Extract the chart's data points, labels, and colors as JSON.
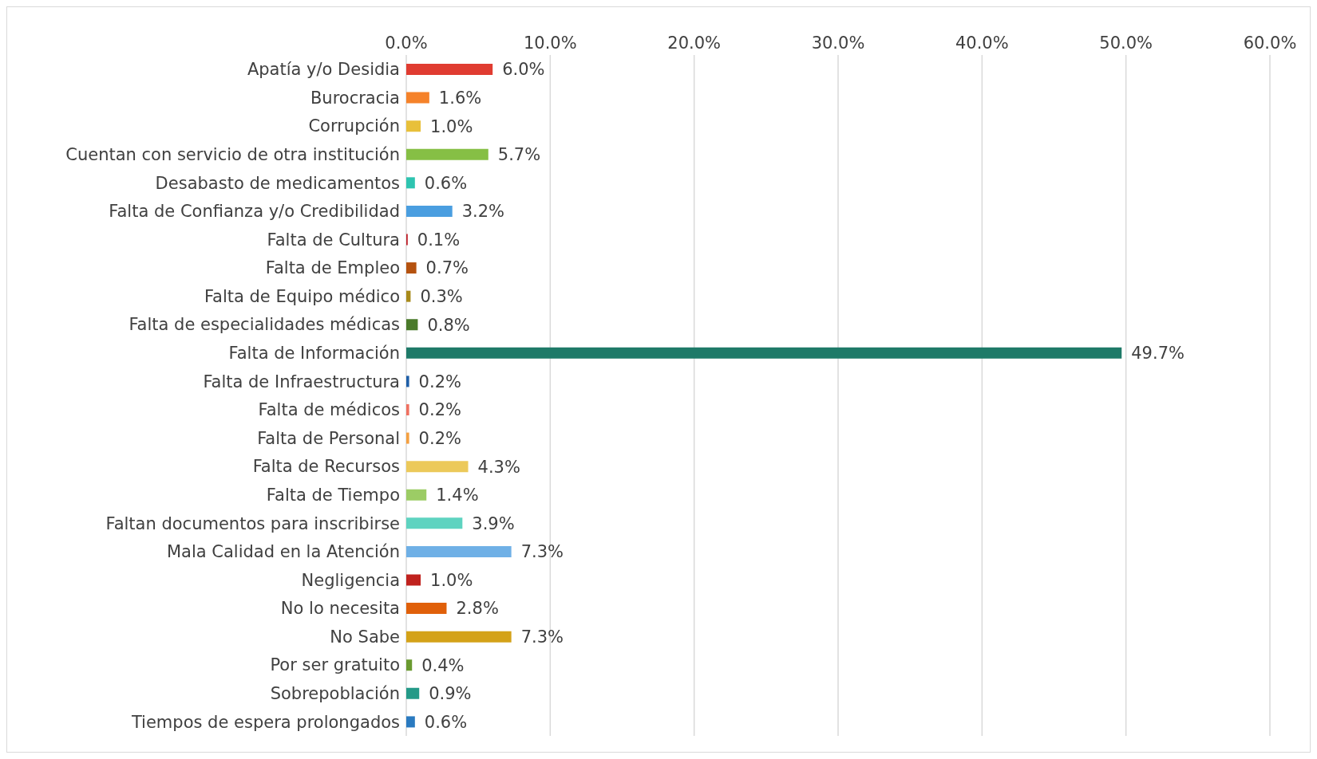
{
  "chart_data": {
    "type": "bar",
    "orientation": "horizontal",
    "categories": [
      "Apatía y/o Desidia",
      "Burocracia",
      "Corrupción",
      "Cuentan con servicio de otra institución",
      "Desabasto de medicamentos",
      "Falta de Confianza y/o Credibilidad",
      "Falta de Cultura",
      "Falta de Empleo",
      "Falta de Equipo médico",
      "Falta de especialidades médicas",
      "Falta de Información",
      "Falta de Infraestructura",
      "Falta de médicos",
      "Falta de Personal",
      "Falta de Recursos",
      "Falta de Tiempo",
      "Faltan documentos para inscribirse",
      "Mala Calidad en la Atención",
      "Negligencia",
      "No lo necesita",
      "No Sabe",
      "Por ser gratuito",
      "Sobrepoblación",
      "Tiempos de espera prolongados"
    ],
    "values": [
      6.0,
      1.6,
      1.0,
      5.7,
      0.6,
      3.2,
      0.1,
      0.7,
      0.3,
      0.8,
      49.7,
      0.2,
      0.2,
      0.2,
      4.3,
      1.4,
      3.9,
      7.3,
      1.0,
      2.8,
      7.3,
      0.4,
      0.9,
      0.6
    ],
    "value_labels": [
      "6.0%",
      "1.6%",
      "1.0%",
      "5.7%",
      "0.6%",
      "3.2%",
      "0.1%",
      "0.7%",
      "0.3%",
      "0.8%",
      "49.7%",
      "0.2%",
      "0.2%",
      "0.2%",
      "4.3%",
      "1.4%",
      "3.9%",
      "7.3%",
      "1.0%",
      "2.8%",
      "7.3%",
      "0.4%",
      "0.9%",
      "0.6%"
    ],
    "colors": [
      "#e03c31",
      "#f5822a",
      "#e8c03a",
      "#86bf45",
      "#2ec4b0",
      "#4a9ee0",
      "#c0202a",
      "#b5520f",
      "#a88a1a",
      "#4a7a2a",
      "#1e7a68",
      "#1f5fa8",
      "#f07060",
      "#f5a040",
      "#ecc95a",
      "#9ccc65",
      "#5ed3c0",
      "#6fb0e6",
      "#c0221e",
      "#e0600a",
      "#d4a218",
      "#6a9a30",
      "#249a88",
      "#2a7ac0"
    ],
    "xlim": [
      0,
      60
    ],
    "xticks": [
      {
        "value": 0,
        "label": "0.0%"
      },
      {
        "value": 10,
        "label": "10.0%"
      },
      {
        "value": 20,
        "label": "20.0%"
      },
      {
        "value": 30,
        "label": "30.0%"
      },
      {
        "value": 40,
        "label": "40.0%"
      },
      {
        "value": 50,
        "label": "50.0%"
      },
      {
        "value": 60,
        "label": "60.0%"
      }
    ],
    "grid": "x",
    "legend": false
  }
}
